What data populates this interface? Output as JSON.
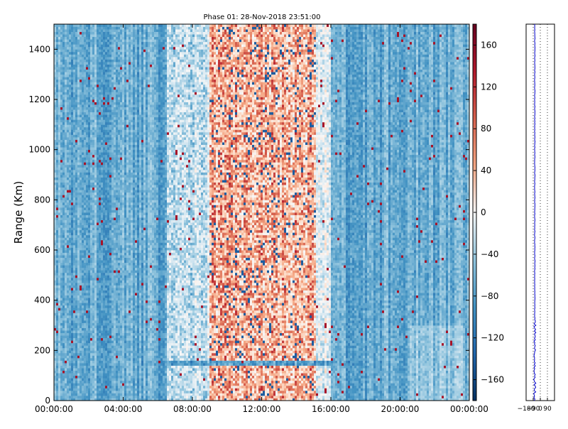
{
  "chart_data": [
    {
      "type": "heatmap",
      "title": "Phase 01: 28-Nov-2018 23:51:00",
      "ylabel": "Range (Km)",
      "xlabel": "",
      "x_ticks": [
        "00:00:00",
        "04:00:00",
        "08:00:00",
        "12:00:00",
        "16:00:00",
        "20:00:00",
        "00:00:00"
      ],
      "x_hours": [
        0,
        24
      ],
      "y_ticks": [
        0,
        200,
        400,
        600,
        800,
        1000,
        1200,
        1400
      ],
      "ylim": [
        0,
        1500
      ],
      "grid": false,
      "colorbar": {
        "ticks": [
          160,
          120,
          80,
          40,
          0,
          -40,
          -80,
          -120,
          -160
        ],
        "range": [
          -180,
          180
        ],
        "colormap": "RdBu_r",
        "colors": {
          "max": "#67001f",
          "high": "#d6604d",
          "mid": "#f7f7f7",
          "low": "#4393c3",
          "min": "#053061"
        }
      },
      "regions": [
        {
          "desc": "background",
          "hours": [
            0,
            24
          ],
          "phase": -90
        },
        {
          "hours": [
            6.5,
            9.0
          ],
          "phase": -40
        },
        {
          "hours": [
            9.0,
            15.2
          ],
          "phase": 60
        },
        {
          "hours": [
            15.2,
            16.0
          ],
          "phase": -20
        },
        {
          "hours": [
            20.5,
            23.8
          ],
          "range": [
            0,
            300
          ],
          "phase": -70
        }
      ],
      "band": {
        "range": [
          140,
          160
        ],
        "hours": [
          5.0,
          18.0
        ],
        "phase": -100
      }
    },
    {
      "type": "line",
      "title": "",
      "x_ticks": [
        "−180",
        "−90",
        "0",
        "90"
      ],
      "xlim": [
        -180,
        180
      ],
      "ylim": [
        0,
        1500
      ],
      "vertical_dotted_lines": [
        -90,
        0,
        90
      ],
      "series": [
        {
          "color": "#0000c8",
          "mean_phase": -70
        }
      ]
    }
  ]
}
